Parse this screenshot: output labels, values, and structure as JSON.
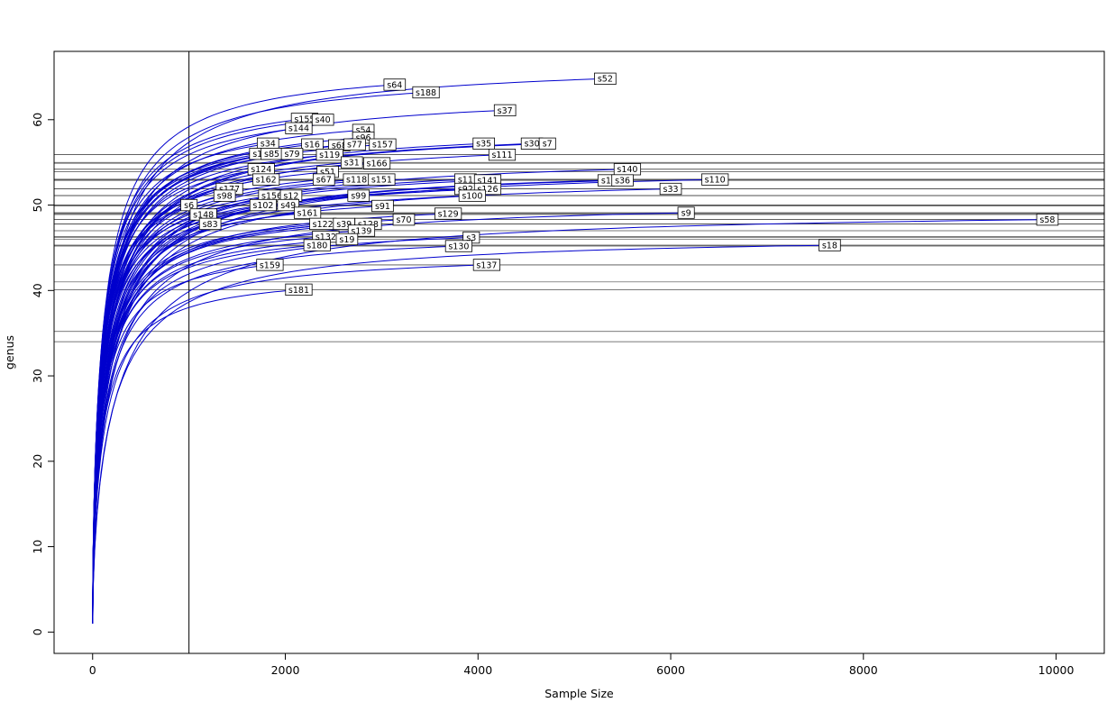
{
  "chart_data": {
    "type": "line",
    "title": "",
    "xlabel": "Sample Size",
    "ylabel": "genus",
    "xlim": [
      0,
      10000
    ],
    "ylim": [
      0,
      65
    ],
    "x_ticks": [
      0,
      2000,
      4000,
      6000,
      8000,
      10000
    ],
    "y_ticks": [
      0,
      10,
      20,
      30,
      40,
      50,
      60
    ],
    "grid": false,
    "legend": "none",
    "vline_x": 1000,
    "curve_color": "#0000cd",
    "hline_color": "#4d4d4d",
    "axis_color": "#000000",
    "label_box_fill": "#ffffff",
    "label_box_stroke": "#000000",
    "curve_start": {
      "x": 1,
      "y": 1
    },
    "hline_max_y": 56,
    "extra_hlines": [
      41.0,
      35.2,
      34.0
    ],
    "series": [
      {
        "name": "s52",
        "x_end": 5320,
        "y_end": 64.8
      },
      {
        "name": "s64",
        "x_end": 3135,
        "y_end": 64.1
      },
      {
        "name": "s188",
        "x_end": 3460,
        "y_end": 63.2
      },
      {
        "name": "s37",
        "x_end": 4280,
        "y_end": 61.1
      },
      {
        "name": "s155",
        "x_end": 2200,
        "y_end": 60.1
      },
      {
        "name": "s40",
        "x_end": 2390,
        "y_end": 60.0
      },
      {
        "name": "s144",
        "x_end": 2140,
        "y_end": 59.0
      },
      {
        "name": "s54",
        "x_end": 2810,
        "y_end": 58.8
      },
      {
        "name": "s96",
        "x_end": 2810,
        "y_end": 57.9
      },
      {
        "name": "s34",
        "x_end": 1820,
        "y_end": 57.2
      },
      {
        "name": "s16",
        "x_end": 2280,
        "y_end": 57.1
      },
      {
        "name": "s68",
        "x_end": 2560,
        "y_end": 57.0
      },
      {
        "name": "s77",
        "x_end": 2720,
        "y_end": 57.1
      },
      {
        "name": "s157",
        "x_end": 3010,
        "y_end": 57.1
      },
      {
        "name": "s35",
        "x_end": 4060,
        "y_end": 57.2
      },
      {
        "name": "s30",
        "x_end": 4560,
        "y_end": 57.2
      },
      {
        "name": "s7",
        "x_end": 4720,
        "y_end": 57.2
      },
      {
        "name": "s15",
        "x_end": 1740,
        "y_end": 56.0
      },
      {
        "name": "s85",
        "x_end": 1860,
        "y_end": 56.0
      },
      {
        "name": "s79",
        "x_end": 2070,
        "y_end": 56.0
      },
      {
        "name": "s119",
        "x_end": 2460,
        "y_end": 55.9
      },
      {
        "name": "s111",
        "x_end": 4250,
        "y_end": 55.9
      },
      {
        "name": "s31",
        "x_end": 2690,
        "y_end": 55.0
      },
      {
        "name": "s166",
        "x_end": 2950,
        "y_end": 54.9
      },
      {
        "name": "s124",
        "x_end": 1750,
        "y_end": 54.2
      },
      {
        "name": "s51",
        "x_end": 2440,
        "y_end": 53.9
      },
      {
        "name": "s140",
        "x_end": 5550,
        "y_end": 54.2
      },
      {
        "name": "s162",
        "x_end": 1800,
        "y_end": 53.0
      },
      {
        "name": "s67",
        "x_end": 2400,
        "y_end": 53.0
      },
      {
        "name": "s118",
        "x_end": 2740,
        "y_end": 53.0
      },
      {
        "name": "s151",
        "x_end": 3000,
        "y_end": 53.0
      },
      {
        "name": "s11",
        "x_end": 3870,
        "y_end": 53.0
      },
      {
        "name": "s141",
        "x_end": 4100,
        "y_end": 52.9
      },
      {
        "name": "s1",
        "x_end": 5330,
        "y_end": 52.9
      },
      {
        "name": "s36",
        "x_end": 5500,
        "y_end": 52.9
      },
      {
        "name": "s110",
        "x_end": 6460,
        "y_end": 53.0
      },
      {
        "name": "s177",
        "x_end": 1420,
        "y_end": 51.9
      },
      {
        "name": "s92",
        "x_end": 3870,
        "y_end": 51.9
      },
      {
        "name": "s126",
        "x_end": 4100,
        "y_end": 51.9
      },
      {
        "name": "s33",
        "x_end": 6000,
        "y_end": 51.9
      },
      {
        "name": "s98",
        "x_end": 1370,
        "y_end": 51.1
      },
      {
        "name": "s156",
        "x_end": 1860,
        "y_end": 51.1
      },
      {
        "name": "s12",
        "x_end": 2060,
        "y_end": 51.1
      },
      {
        "name": "s99",
        "x_end": 2760,
        "y_end": 51.1
      },
      {
        "name": "s100",
        "x_end": 3940,
        "y_end": 51.1
      },
      {
        "name": "s6",
        "x_end": 1000,
        "y_end": 50.0
      },
      {
        "name": "s102",
        "x_end": 1770,
        "y_end": 50.0
      },
      {
        "name": "s49",
        "x_end": 2030,
        "y_end": 50.0
      },
      {
        "name": "s91",
        "x_end": 3010,
        "y_end": 49.9
      },
      {
        "name": "s161",
        "x_end": 2230,
        "y_end": 49.1
      },
      {
        "name": "s129",
        "x_end": 3690,
        "y_end": 49.0
      },
      {
        "name": "s9",
        "x_end": 6160,
        "y_end": 49.1
      },
      {
        "name": "s148",
        "x_end": 1150,
        "y_end": 48.9
      },
      {
        "name": "s83",
        "x_end": 1220,
        "y_end": 47.8
      },
      {
        "name": "s122",
        "x_end": 2390,
        "y_end": 47.8
      },
      {
        "name": "s39",
        "x_end": 2610,
        "y_end": 47.8
      },
      {
        "name": "s128",
        "x_end": 2860,
        "y_end": 47.8
      },
      {
        "name": "s70",
        "x_end": 3230,
        "y_end": 48.3
      },
      {
        "name": "s58",
        "x_end": 9910,
        "y_end": 48.3
      },
      {
        "name": "s139",
        "x_end": 2790,
        "y_end": 47.0
      },
      {
        "name": "s132",
        "x_end": 2420,
        "y_end": 46.3
      },
      {
        "name": "s19",
        "x_end": 2640,
        "y_end": 46.0
      },
      {
        "name": "s3",
        "x_end": 3930,
        "y_end": 46.2
      },
      {
        "name": "s180",
        "x_end": 2330,
        "y_end": 45.3
      },
      {
        "name": "s130",
        "x_end": 3800,
        "y_end": 45.2
      },
      {
        "name": "s18",
        "x_end": 7650,
        "y_end": 45.3
      },
      {
        "name": "s159",
        "x_end": 1840,
        "y_end": 43.0
      },
      {
        "name": "s137",
        "x_end": 4090,
        "y_end": 43.0
      },
      {
        "name": "s181",
        "x_end": 2140,
        "y_end": 40.1
      }
    ]
  }
}
